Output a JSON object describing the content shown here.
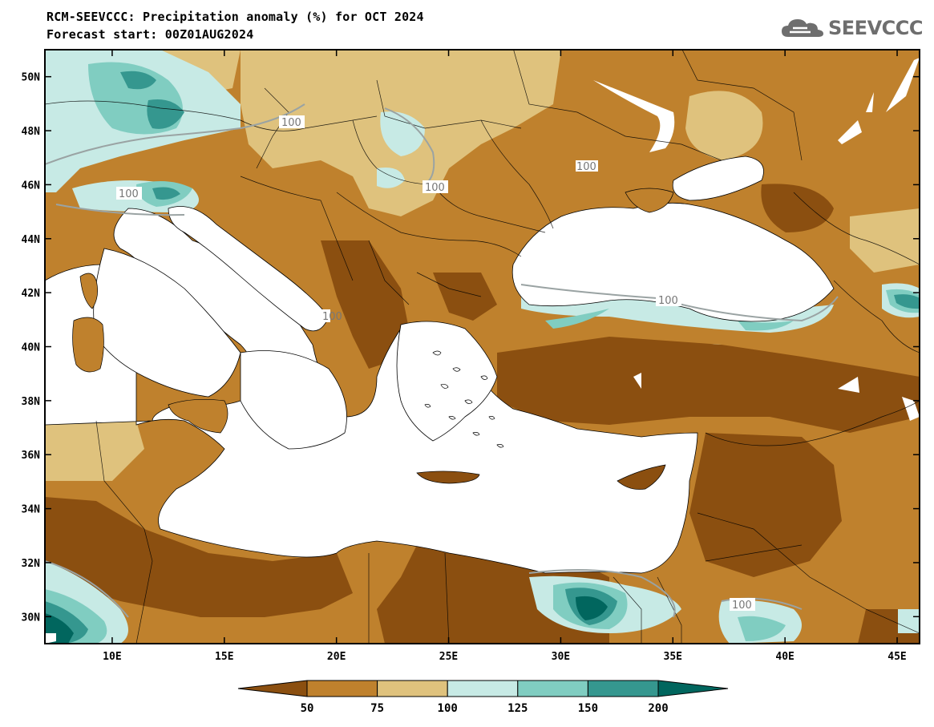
{
  "header": {
    "title": "RCM-SEEVCCC: Precipitation anomaly (%) for OCT 2024",
    "subtitle": "Forecast start: 00Z01AUG2024"
  },
  "logo": {
    "text": "SEEVCCC",
    "icon": "cloud-icon",
    "color": "#6e6e6e"
  },
  "map": {
    "lat_labels": [
      "50N",
      "48N",
      "46N",
      "44N",
      "42N",
      "40N",
      "38N",
      "36N",
      "34N",
      "32N",
      "30N"
    ],
    "lon_labels": [
      "10E",
      "15E",
      "20E",
      "25E",
      "30E",
      "35E",
      "40E",
      "45E"
    ],
    "contour_labels": [
      "100",
      "100",
      "100",
      "100",
      "100",
      "100",
      "100"
    ],
    "extent": {
      "lon_min": 7,
      "lon_max": 46,
      "lat_min": 29,
      "lat_max": 51
    }
  },
  "colorbar": {
    "labels": [
      "50",
      "75",
      "100",
      "125",
      "150",
      "200"
    ],
    "colors": [
      "#8b4f10",
      "#bf812d",
      "#dfc27d",
      "#c7eae5",
      "#80cdc1",
      "#35978f",
      "#01665e"
    ]
  }
}
